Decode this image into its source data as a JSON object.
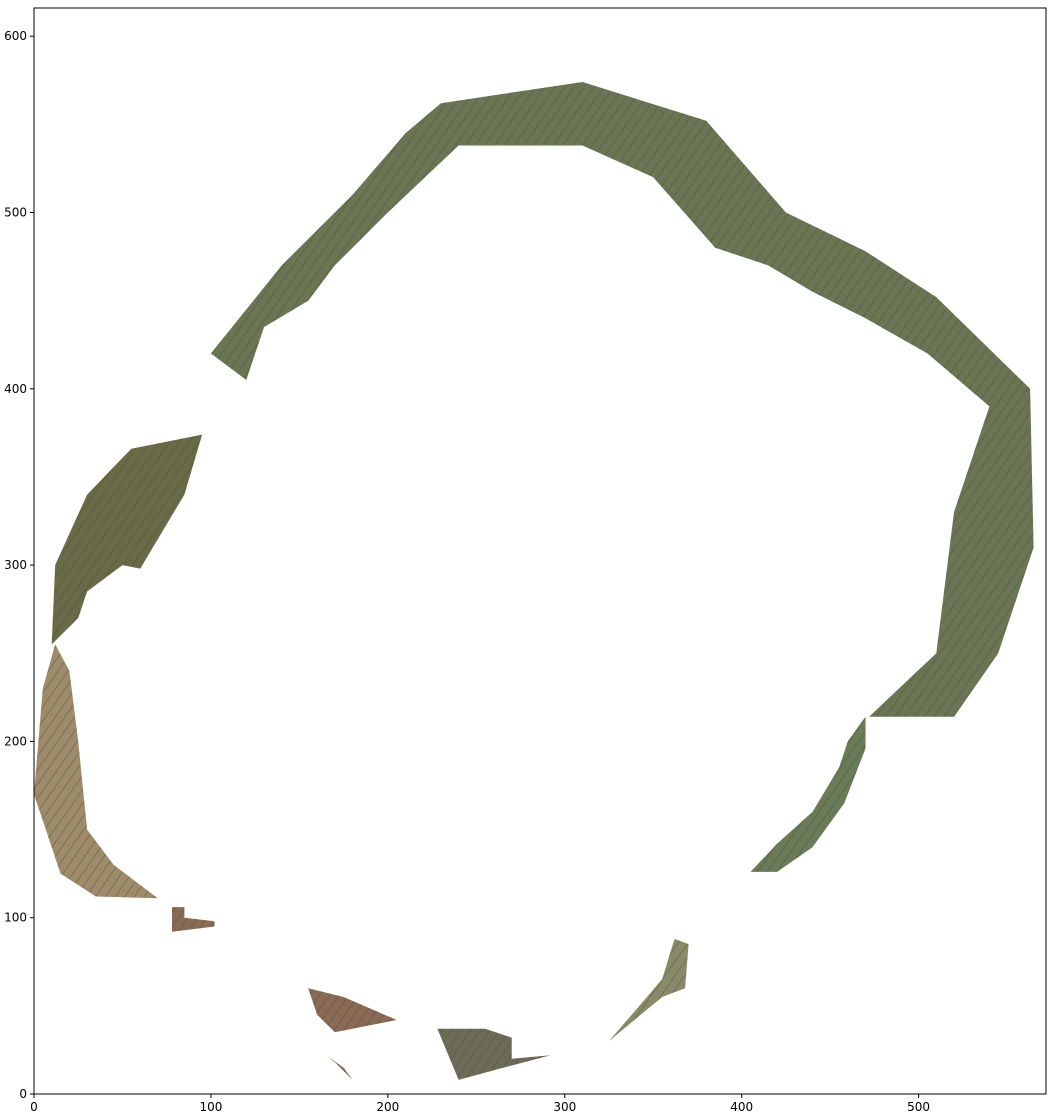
{
  "chart_data": {
    "type": "image",
    "title": "",
    "xlabel": "",
    "ylabel": "",
    "xlim": [
      0,
      572
    ],
    "ylim": [
      0,
      616
    ],
    "y_origin": "lower",
    "grid": false,
    "xticks": [
      0,
      100,
      200,
      300,
      400,
      500
    ],
    "yticks": [
      0,
      100,
      200,
      300,
      400,
      500,
      600
    ],
    "xtick_labels": [
      "0",
      "100",
      "200",
      "300",
      "400",
      "500"
    ],
    "ytick_labels": [
      "0",
      "100",
      "200",
      "300",
      "400",
      "500",
      "600"
    ],
    "image_content": "mosaic-of-aerial-field-imagery-forming-a-ring",
    "fragments": [
      {
        "name": "upper-right-arc",
        "color": "#6b7555",
        "polygon": [
          [
            230,
            562
          ],
          [
            310,
            574
          ],
          [
            380,
            552
          ],
          [
            425,
            500
          ],
          [
            470,
            478
          ],
          [
            510,
            452
          ],
          [
            563,
            400
          ],
          [
            565,
            310
          ],
          [
            545,
            250
          ],
          [
            520,
            214
          ],
          [
            472,
            214
          ],
          [
            510,
            250
          ],
          [
            520,
            330
          ],
          [
            540,
            390
          ],
          [
            505,
            420
          ],
          [
            470,
            440
          ],
          [
            440,
            455
          ],
          [
            415,
            470
          ],
          [
            385,
            480
          ],
          [
            350,
            520
          ],
          [
            310,
            538
          ],
          [
            240,
            538
          ],
          [
            200,
            500
          ],
          [
            170,
            470
          ],
          [
            155,
            450
          ],
          [
            130,
            435
          ],
          [
            120,
            405
          ],
          [
            100,
            420
          ],
          [
            140,
            470
          ],
          [
            180,
            510
          ],
          [
            210,
            545
          ]
        ]
      },
      {
        "name": "left-upper-arc",
        "color": "#6a6a48",
        "polygon": [
          [
            95,
            374
          ],
          [
            55,
            366
          ],
          [
            30,
            340
          ],
          [
            12,
            300
          ],
          [
            10,
            255
          ],
          [
            25,
            270
          ],
          [
            30,
            285
          ],
          [
            50,
            300
          ],
          [
            60,
            298
          ],
          [
            85,
            340
          ]
        ]
      },
      {
        "name": "left-lower-arc",
        "color": "#a08a6c",
        "polygon": [
          [
            12,
            255
          ],
          [
            5,
            230
          ],
          [
            0,
            170
          ],
          [
            15,
            125
          ],
          [
            35,
            112
          ],
          [
            70,
            111
          ],
          [
            45,
            130
          ],
          [
            30,
            150
          ],
          [
            25,
            200
          ],
          [
            20,
            240
          ]
        ]
      },
      {
        "name": "right-lower-arc",
        "color": "#6b7a58",
        "polygon": [
          [
            470,
            214
          ],
          [
            470,
            196
          ],
          [
            458,
            165
          ],
          [
            440,
            140
          ],
          [
            420,
            126
          ],
          [
            405,
            126
          ],
          [
            420,
            142
          ],
          [
            440,
            160
          ],
          [
            455,
            185
          ],
          [
            460,
            200
          ]
        ]
      },
      {
        "name": "bottom-right-fragment",
        "color": "#8a8a6a",
        "polygon": [
          [
            325,
            30
          ],
          [
            355,
            55
          ],
          [
            368,
            60
          ],
          [
            370,
            85
          ],
          [
            362,
            88
          ],
          [
            355,
            65
          ]
        ]
      },
      {
        "name": "bottom-fragment-a",
        "color": "#8a6a56",
        "polygon": [
          [
            155,
            60
          ],
          [
            175,
            55
          ],
          [
            205,
            42
          ],
          [
            170,
            35
          ],
          [
            160,
            45
          ]
        ]
      },
      {
        "name": "bottom-fragment-b",
        "color": "#6e6a5a",
        "polygon": [
          [
            228,
            37
          ],
          [
            255,
            37
          ],
          [
            270,
            32
          ],
          [
            270,
            20
          ],
          [
            292,
            22
          ],
          [
            262,
            14
          ],
          [
            240,
            8
          ]
        ]
      },
      {
        "name": "bottom-fragment-c",
        "color": "#8a6a56",
        "polygon": [
          [
            165,
            22
          ],
          [
            175,
            15
          ],
          [
            180,
            8
          ],
          [
            170,
            18
          ]
        ]
      },
      {
        "name": "left-fragment-d",
        "color": "#8a6a56",
        "polygon": [
          [
            78,
            106
          ],
          [
            85,
            106
          ],
          [
            85,
            100
          ],
          [
            102,
            98
          ],
          [
            102,
            95
          ],
          [
            78,
            92
          ]
        ]
      }
    ]
  }
}
